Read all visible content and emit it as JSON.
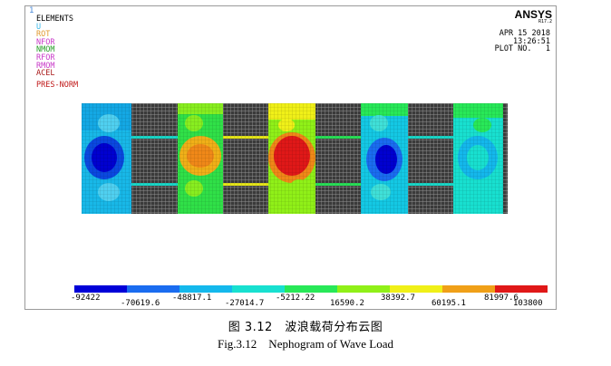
{
  "plot": {
    "corner_number": "1",
    "title": "ELEMENTS",
    "symbols": [
      {
        "label": "U",
        "color": "#38b8e8"
      },
      {
        "label": "ROT",
        "color": "#e09a30"
      },
      {
        "label": "NFOR",
        "color": "#c83ac8"
      },
      {
        "label": "NMOM",
        "color": "#28a028"
      },
      {
        "label": "RFOR",
        "color": "#c83ac8"
      },
      {
        "label": "RMOM",
        "color": "#c83ac8"
      },
      {
        "label": "ACEL",
        "color": "#a81818"
      },
      {
        "label": "PRES-NORM",
        "color": "#c01818"
      }
    ],
    "brand": "ANSYS",
    "version": "R17.2",
    "date": "APR 15 2018",
    "time": "13:26:51",
    "plot_no": "PLOT NO.   1",
    "contour_legend": {
      "values": [
        "-92422",
        "-70619.6",
        "-48817.1",
        "-27014.7",
        "-5212.22",
        "16590.2",
        "38392.7",
        "60195.1",
        "81997.6",
        "103800"
      ],
      "colors": [
        "#0000d8",
        "#1a6cf0",
        "#14b8ec",
        "#18e0d0",
        "#28e858",
        "#90f018",
        "#f0f018",
        "#f0a018",
        "#e01818"
      ]
    }
  },
  "caption": {
    "chinese": "图 3.12　波浪载荷分布云图",
    "english": "Fig.3.12    Nephogram of Wave Load"
  }
}
